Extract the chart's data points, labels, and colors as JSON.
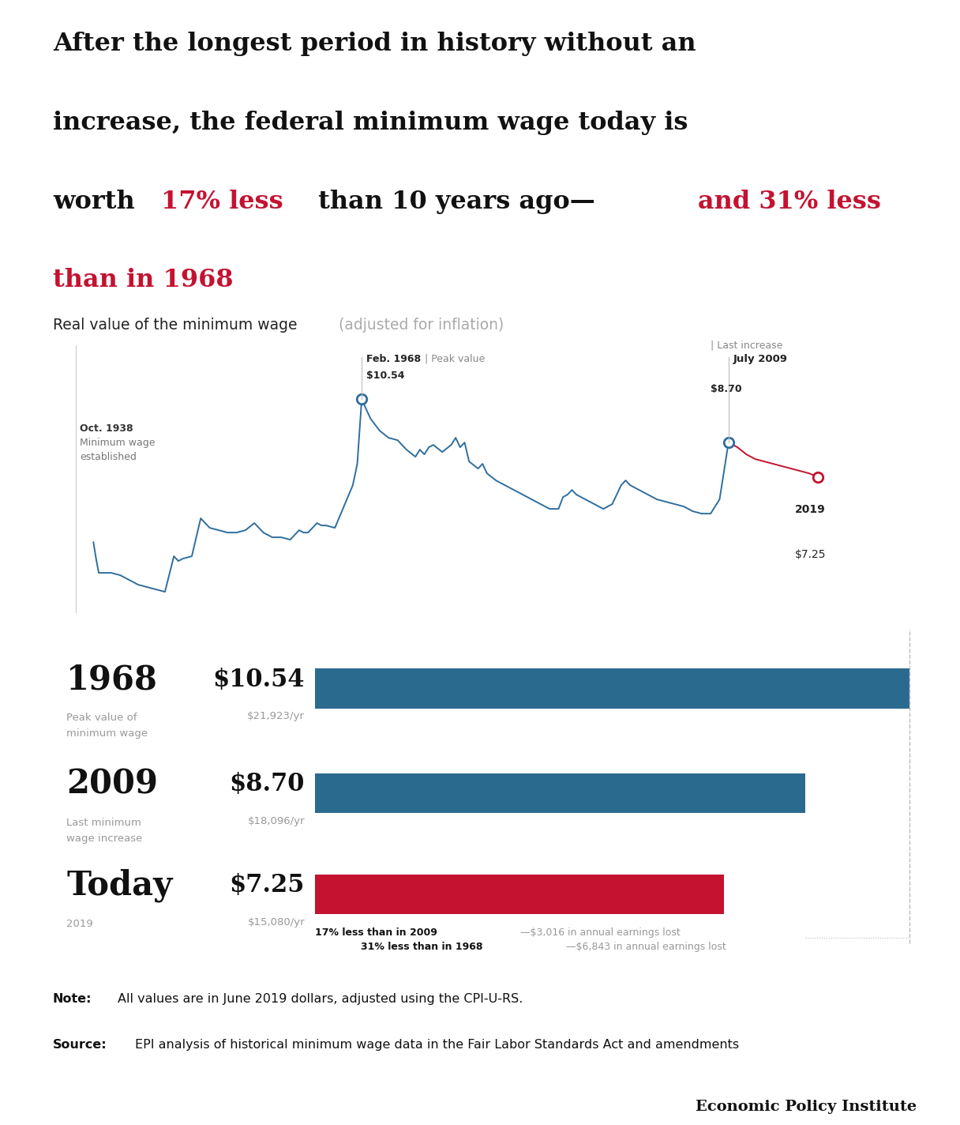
{
  "background_color": "#ffffff",
  "top_bar_color": "#b0b0b0",
  "red_color": "#c41230",
  "blue_color": "#2e6e9e",
  "dark_blue_bar": "#2b6a8f",
  "title_parts": [
    {
      "text": "After the longest period in history without an\nincrease, the federal minimum wage today is\nworth ",
      "color": "#1a1a1a"
    },
    {
      "text": "17% less",
      "color": "#c41230"
    },
    {
      "text": " than 10 years ago—",
      "color": "#1a1a1a"
    },
    {
      "text": "and 31% less\nthan in 1968",
      "color": "#c41230"
    }
  ],
  "subtitle_black": "Real value of the minimum wage",
  "subtitle_gray": " (adjusted for inflation)",
  "bar_years": [
    "1968",
    "2009",
    "Today"
  ],
  "bar_sublabels_line1": [
    "Peak value of",
    "Last minimum",
    "2019"
  ],
  "bar_sublabels_line2": [
    "minimum wage",
    "wage increase",
    ""
  ],
  "bar_values": [
    10.54,
    8.7,
    7.25
  ],
  "bar_annual": [
    "$21,923/yr",
    "$18,096/yr",
    "$15,080/yr"
  ],
  "bar_labels": [
    "$10.54",
    "$8.70",
    "$7.25"
  ],
  "bar_colors": [
    "#2b6a8f",
    "#2b6a8f",
    "#c41230"
  ],
  "bar_max": 10.54,
  "note_bold": "Note:",
  "note_text": "All values are in June 2019 dollars, adjusted using the CPI-U-RS.",
  "source_bold": "Source:",
  "source_text": "EPI analysis of historical minimum wage data in the Fair Labor Standards Act and amendments",
  "footer": "Economic Policy Institute",
  "years_data": [
    1938,
    1938.3,
    1938.6,
    1939,
    1940,
    1941,
    1942,
    1943,
    1944,
    1945,
    1946,
    1947,
    1947.5,
    1948,
    1949,
    1950,
    1950.5,
    1951,
    1952,
    1953,
    1954,
    1955,
    1956,
    1956.5,
    1957,
    1958,
    1959,
    1960,
    1961,
    1961.5,
    1962,
    1963,
    1963.5,
    1964,
    1965,
    1966,
    1967,
    1967.5,
    1968,
    1968.5,
    1969,
    1970,
    1971,
    1972,
    1973,
    1974,
    1974.5,
    1975,
    1975.5,
    1976,
    1977,
    1978,
    1978.5,
    1979,
    1979.5,
    1980,
    1981,
    1981.5,
    1982,
    1983,
    1984,
    1985,
    1986,
    1987,
    1988,
    1989,
    1990,
    1990.5,
    1991,
    1991.5,
    1992,
    1993,
    1994,
    1995,
    1996,
    1996.5,
    1997,
    1997.5,
    1998,
    1999,
    2000,
    2001,
    2002,
    2003,
    2004,
    2005,
    2006,
    2007,
    2007.5,
    2008,
    2009,
    2010,
    2011,
    2012,
    2013,
    2014,
    2015,
    2016,
    2017,
    2018,
    2019
  ],
  "values_data": [
    4.5,
    3.8,
    3.2,
    3.2,
    3.2,
    3.1,
    2.9,
    2.7,
    2.6,
    2.5,
    2.4,
    3.9,
    3.7,
    3.8,
    3.9,
    5.5,
    5.3,
    5.1,
    5.0,
    4.9,
    4.9,
    5.0,
    5.3,
    5.1,
    4.9,
    4.7,
    4.7,
    4.6,
    5.0,
    4.9,
    4.9,
    5.3,
    5.2,
    5.2,
    5.1,
    6.0,
    6.9,
    7.8,
    10.54,
    10.1,
    9.7,
    9.2,
    8.9,
    8.8,
    8.4,
    8.1,
    8.4,
    8.2,
    8.5,
    8.6,
    8.3,
    8.6,
    8.9,
    8.5,
    8.7,
    7.9,
    7.6,
    7.8,
    7.4,
    7.1,
    6.9,
    6.7,
    6.5,
    6.3,
    6.1,
    5.9,
    5.9,
    6.4,
    6.5,
    6.7,
    6.5,
    6.3,
    6.1,
    5.9,
    6.1,
    6.5,
    6.9,
    7.1,
    6.9,
    6.7,
    6.5,
    6.3,
    6.2,
    6.1,
    6.0,
    5.8,
    5.7,
    5.7,
    6.0,
    6.3,
    8.7,
    8.5,
    8.2,
    8.0,
    7.9,
    7.8,
    7.7,
    7.6,
    7.5,
    7.4,
    7.25
  ]
}
